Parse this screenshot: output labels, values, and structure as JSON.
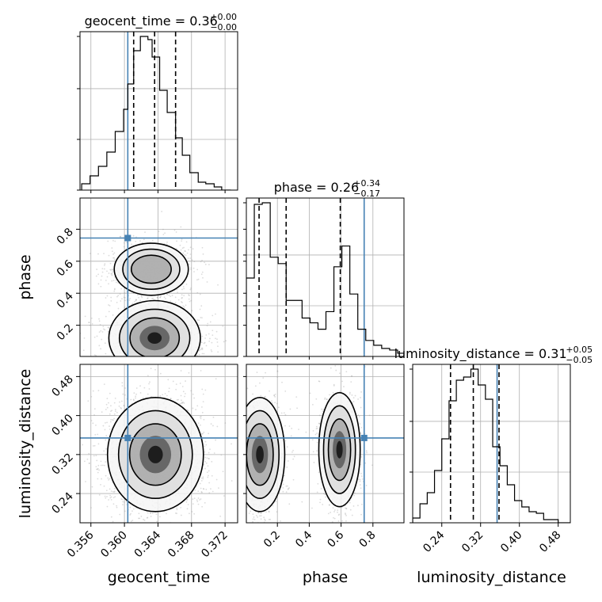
{
  "chart_data": {
    "type": "corner",
    "parameters": [
      {
        "name": "geocent_time",
        "axis_label": "geocent_time",
        "title_main": "geocent_time = 0.36",
        "title_sup": "+0.00",
        "title_sub": "−0.00",
        "range": [
          0.3547,
          0.3735
        ],
        "ticks": [
          0.356,
          0.36,
          0.364,
          0.368,
          0.372
        ],
        "tick_labels": [
          "0.356",
          "0.360",
          "0.364",
          "0.368",
          "0.372"
        ],
        "truth": 0.3604,
        "quantiles": [
          0.3611,
          0.3636,
          0.3661
        ],
        "hist_edges": [
          0.3549,
          0.3559,
          0.3569,
          0.3579,
          0.3589,
          0.3599,
          0.3604,
          0.3611,
          0.3619,
          0.3628,
          0.3633,
          0.3642,
          0.3651,
          0.3661,
          0.3669,
          0.3678,
          0.3688,
          0.3697,
          0.3707,
          0.3716,
          0.3727
        ],
        "hist_counts": [
          0.04,
          0.09,
          0.15,
          0.24,
          0.37,
          0.51,
          0.67,
          0.88,
          0.97,
          0.95,
          0.84,
          0.63,
          0.49,
          0.33,
          0.22,
          0.11,
          0.05,
          0.04,
          0.02,
          0.0
        ]
      },
      {
        "name": "phase",
        "axis_label": "phase",
        "title_main": "phase = 0.26",
        "title_sup": "+0.34",
        "title_sub": "−0.17",
        "range": [
          0.005,
          0.995
        ],
        "ticks": [
          0.2,
          0.4,
          0.6,
          0.8
        ],
        "tick_labels": [
          "0.2",
          "0.4",
          "0.6",
          "0.8"
        ],
        "truth": 0.745,
        "quantiles": [
          0.085,
          0.255,
          0.595
        ],
        "hist_edges": [
          0.005,
          0.055,
          0.105,
          0.155,
          0.205,
          0.255,
          0.305,
          0.355,
          0.405,
          0.455,
          0.505,
          0.555,
          0.605,
          0.655,
          0.705,
          0.755,
          0.805,
          0.855,
          0.905,
          0.955,
          0.995
        ],
        "hist_counts": [
          0.49,
          0.95,
          0.96,
          0.62,
          0.58,
          0.35,
          0.35,
          0.24,
          0.21,
          0.17,
          0.28,
          0.56,
          0.69,
          0.39,
          0.17,
          0.1,
          0.07,
          0.05,
          0.04,
          0.02
        ]
      },
      {
        "name": "luminosity_distance",
        "axis_label": "luminosity_distance",
        "title_main": "luminosity_distance = 0.31",
        "title_sup": "+0.05",
        "title_sub": "−0.05",
        "range": [
          0.18,
          0.505
        ],
        "ticks": [
          0.24,
          0.32,
          0.4,
          0.48
        ],
        "tick_labels": [
          "0.24",
          "0.32",
          "0.40",
          "0.48"
        ],
        "truth": 0.354,
        "quantiles": [
          0.258,
          0.305,
          0.358
        ],
        "hist_edges": [
          0.18,
          0.195,
          0.21,
          0.225,
          0.24,
          0.255,
          0.27,
          0.285,
          0.3,
          0.315,
          0.33,
          0.345,
          0.36,
          0.375,
          0.39,
          0.405,
          0.42,
          0.435,
          0.45,
          0.465,
          0.48,
          0.505
        ],
        "hist_counts": [
          0.03,
          0.12,
          0.19,
          0.33,
          0.53,
          0.77,
          0.9,
          0.92,
          0.97,
          0.87,
          0.78,
          0.48,
          0.36,
          0.24,
          0.14,
          0.1,
          0.07,
          0.06,
          0.02,
          0.02,
          0.0
        ]
      }
    ],
    "pair_plots": [
      {
        "x": "geocent_time",
        "y": "phase",
        "modes": [
          {
            "cx": 0.3636,
            "cy": 0.12,
            "sx": 0.0021,
            "sy": 0.09,
            "w": 1.0
          },
          {
            "cx": 0.3632,
            "cy": 0.55,
            "sx": 0.0019,
            "sy": 0.07,
            "w": 0.55
          }
        ]
      },
      {
        "x": "geocent_time",
        "y": "luminosity_distance",
        "modes": [
          {
            "cx": 0.3637,
            "cy": 0.32,
            "sx": 0.0022,
            "sy": 0.045,
            "w": 1.0
          }
        ]
      },
      {
        "x": "phase",
        "y": "luminosity_distance",
        "modes": [
          {
            "cx": 0.09,
            "cy": 0.32,
            "sx": 0.06,
            "sy": 0.045,
            "w": 1.0
          },
          {
            "cx": 0.59,
            "cy": 0.33,
            "sx": 0.05,
            "sy": 0.045,
            "w": 0.75
          }
        ]
      }
    ],
    "grid": true,
    "truth_color": "#4682b4",
    "quantile_style": "dashed"
  }
}
